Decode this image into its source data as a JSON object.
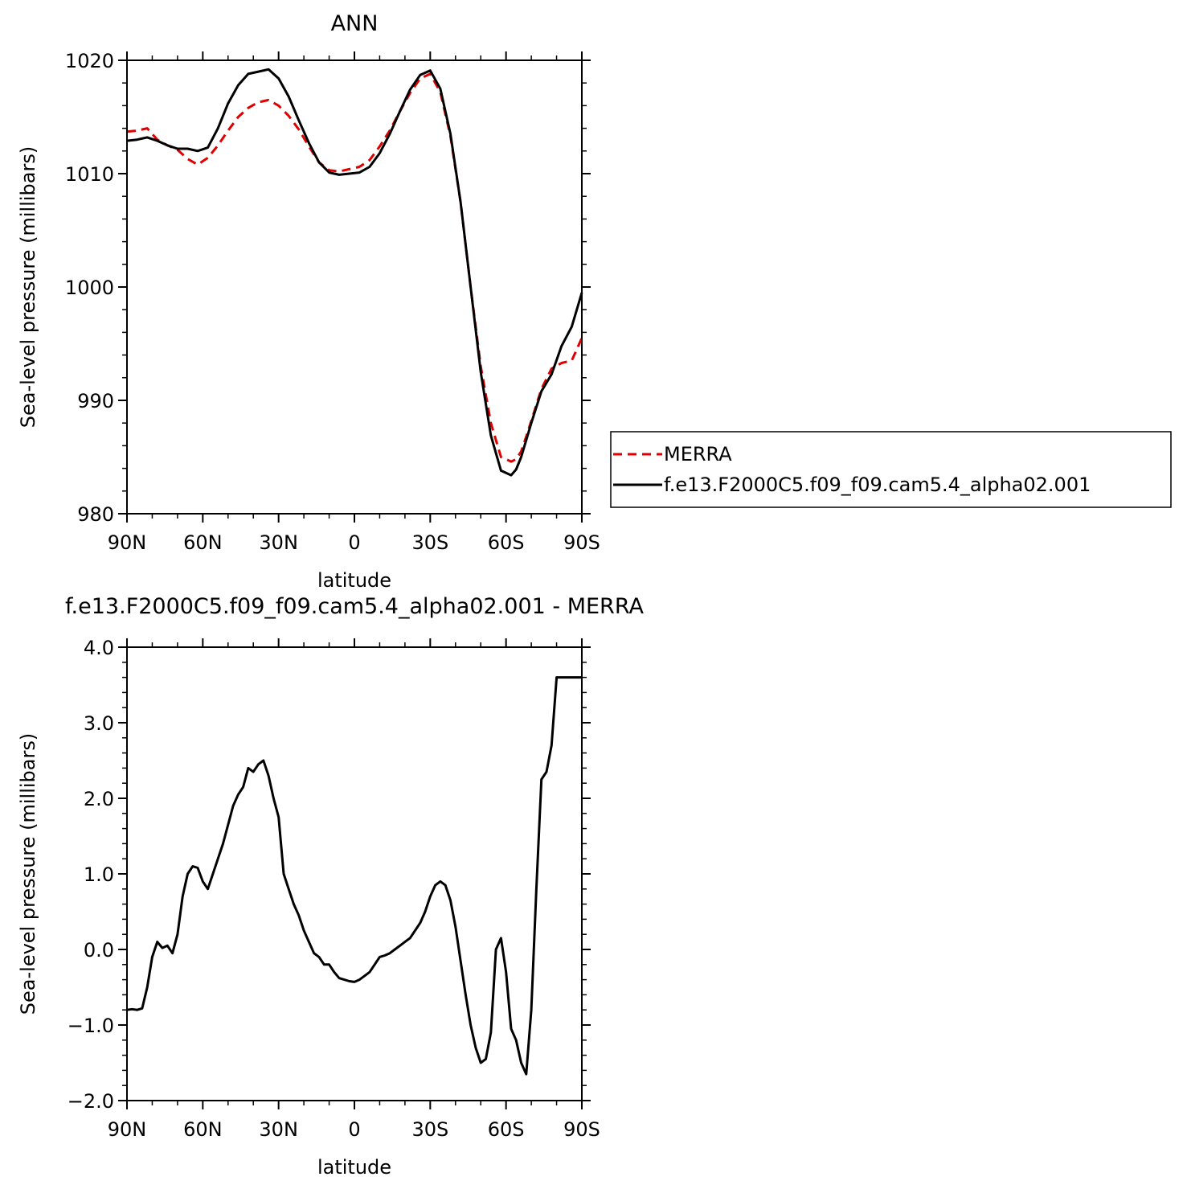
{
  "chart_data": [
    {
      "type": "line",
      "title": "ANN",
      "xlabel": "latitude",
      "ylabel": "Sea-level pressure (millibars)",
      "xlim": [
        90,
        -90
      ],
      "ylim": [
        980,
        1020
      ],
      "x_ticks": [
        90,
        60,
        30,
        0,
        -30,
        -60,
        -90
      ],
      "x_tick_labels": [
        "90N",
        "60N",
        "30N",
        "0",
        "30S",
        "60S",
        "90S"
      ],
      "y_ticks": [
        980,
        990,
        1000,
        1010,
        1020
      ],
      "y_tick_labels": [
        "980",
        "990",
        "1000",
        "1010",
        "1020"
      ],
      "legend": [
        "MERRA",
        "f.e13.F2000C5.f09_f09.cam5.4_alpha02.001"
      ],
      "series": [
        {
          "name": "MERRA",
          "color": "#e00000",
          "dash": "dashed",
          "x": [
            90,
            86,
            82,
            78,
            74,
            70,
            66,
            62,
            58,
            54,
            50,
            46,
            42,
            38,
            34,
            30,
            26,
            22,
            18,
            14,
            10,
            6,
            2,
            -2,
            -6,
            -10,
            -14,
            -18,
            -22,
            -26,
            -30,
            -34,
            -38,
            -42,
            -46,
            -50,
            -54,
            -58,
            -62,
            -64,
            -66,
            -68,
            -70,
            -74,
            -78,
            -82,
            -86,
            -90
          ],
          "y": [
            1013.7,
            1013.8,
            1014.0,
            1013.0,
            1012.5,
            1012.1,
            1011.3,
            1010.8,
            1011.4,
            1012.5,
            1013.8,
            1015.0,
            1015.8,
            1016.3,
            1016.5,
            1016.0,
            1015.1,
            1013.9,
            1012.4,
            1011.0,
            1010.3,
            1010.2,
            1010.4,
            1010.6,
            1011.2,
            1012.4,
            1013.8,
            1015.5,
            1017.1,
            1018.4,
            1018.8,
            1017.2,
            1013.3,
            1007.5,
            1000.0,
            993.0,
            988.0,
            985.0,
            984.6,
            984.8,
            985.5,
            986.8,
            988.2,
            991.0,
            992.8,
            993.3,
            993.5,
            995.5
          ]
        },
        {
          "name": "f.e13.F2000C5.f09_f09.cam5.4_alpha02.001",
          "color": "#000000",
          "dash": "solid",
          "x": [
            90,
            86,
            82,
            78,
            74,
            70,
            66,
            62,
            58,
            54,
            50,
            46,
            42,
            38,
            34,
            30,
            26,
            22,
            18,
            14,
            10,
            6,
            2,
            -2,
            -6,
            -10,
            -14,
            -18,
            -22,
            -26,
            -30,
            -34,
            -38,
            -42,
            -46,
            -50,
            -54,
            -58,
            -62,
            -64,
            -66,
            -68,
            -70,
            -74,
            -78,
            -82,
            -86,
            -90
          ],
          "y": [
            1012.9,
            1013.0,
            1013.2,
            1012.9,
            1012.5,
            1012.2,
            1012.2,
            1012.0,
            1012.3,
            1014.0,
            1016.2,
            1017.8,
            1018.8,
            1019.0,
            1019.2,
            1018.4,
            1016.8,
            1014.7,
            1012.7,
            1011.0,
            1010.1,
            1009.9,
            1010.0,
            1010.1,
            1010.6,
            1011.8,
            1013.5,
            1015.5,
            1017.4,
            1018.7,
            1019.1,
            1017.5,
            1013.5,
            1007.5,
            1000.0,
            992.5,
            986.9,
            983.8,
            983.4,
            983.9,
            985.0,
            986.5,
            988.0,
            990.8,
            992.3,
            994.8,
            996.5,
            999.5
          ]
        }
      ]
    },
    {
      "type": "line",
      "title": "f.e13.F2000C5.f09_f09.cam5.4_alpha02.001 - MERRA",
      "xlabel": "latitude",
      "ylabel": "Sea-level pressure (millibars)",
      "xlim": [
        90,
        -90
      ],
      "ylim": [
        -2.0,
        4.0
      ],
      "x_ticks": [
        90,
        60,
        30,
        0,
        -30,
        -60,
        -90
      ],
      "x_tick_labels": [
        "90N",
        "60N",
        "30N",
        "0",
        "30S",
        "60S",
        "90S"
      ],
      "y_ticks": [
        -2.0,
        -1.0,
        0.0,
        1.0,
        2.0,
        3.0,
        4.0
      ],
      "y_tick_labels": [
        "−2.0",
        "−1.0",
        "0.0",
        "1.0",
        "2.0",
        "3.0",
        "4.0"
      ],
      "series": [
        {
          "color": "#000000",
          "dash": "solid",
          "x": [
            90,
            88,
            86,
            84,
            82,
            80,
            78,
            76,
            74,
            72,
            70,
            68,
            66,
            64,
            62,
            60,
            58,
            56,
            54,
            52,
            50,
            48,
            46,
            44,
            42,
            40,
            38,
            36,
            34,
            32,
            30,
            28,
            26,
            24,
            22,
            20,
            18,
            16,
            14,
            12,
            10,
            8,
            6,
            4,
            2,
            0,
            -2,
            -4,
            -6,
            -8,
            -10,
            -12,
            -14,
            -16,
            -18,
            -20,
            -22,
            -24,
            -26,
            -28,
            -30,
            -32,
            -34,
            -36,
            -38,
            -40,
            -42,
            -44,
            -46,
            -48,
            -50,
            -52,
            -54,
            -56,
            -58,
            -60,
            -62,
            -64,
            -66,
            -68,
            -70,
            -72,
            -74,
            -76,
            -78,
            -80,
            -82,
            -84,
            -86,
            -88,
            -90
          ],
          "y": [
            -0.8,
            -0.79,
            -0.8,
            -0.78,
            -0.5,
            -0.1,
            0.1,
            0.02,
            0.05,
            -0.05,
            0.2,
            0.7,
            1.0,
            1.1,
            1.08,
            0.9,
            0.8,
            1.0,
            1.2,
            1.4,
            1.65,
            1.9,
            2.05,
            2.15,
            2.4,
            2.35,
            2.45,
            2.5,
            2.3,
            2.0,
            1.75,
            1.0,
            0.8,
            0.6,
            0.45,
            0.25,
            0.1,
            -0.05,
            -0.1,
            -0.2,
            -0.2,
            -0.3,
            -0.38,
            -0.4,
            -0.42,
            -0.43,
            -0.4,
            -0.35,
            -0.3,
            -0.2,
            -0.1,
            -0.08,
            -0.05,
            0.0,
            0.05,
            0.1,
            0.15,
            0.25,
            0.35,
            0.5,
            0.7,
            0.85,
            0.9,
            0.85,
            0.65,
            0.3,
            -0.15,
            -0.6,
            -1.0,
            -1.3,
            -1.5,
            -1.45,
            -1.1,
            0.0,
            0.15,
            -0.3,
            -1.05,
            -1.2,
            -1.5,
            -1.65,
            -0.8,
            0.8,
            2.25,
            2.35,
            2.7,
            3.6,
            3.6,
            3.6,
            3.6,
            3.6,
            3.6
          ]
        }
      ]
    }
  ]
}
